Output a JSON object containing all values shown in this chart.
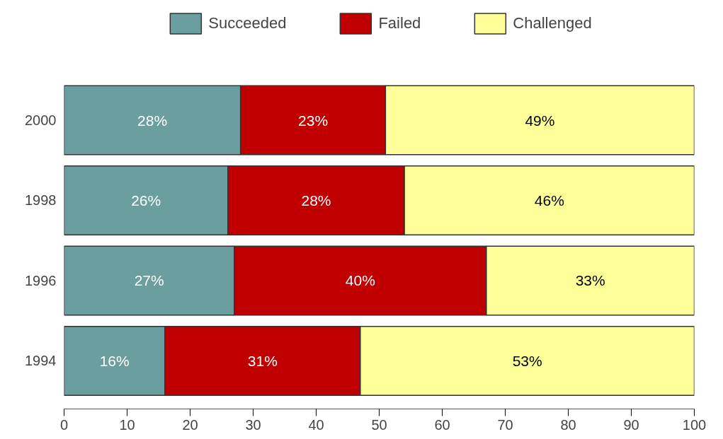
{
  "chart_data": {
    "type": "bar",
    "orientation": "horizontal",
    "stacked": true,
    "categories": [
      "2000",
      "1998",
      "1996",
      "1994"
    ],
    "series": [
      {
        "name": "Succeeded",
        "color": "#6b9e9e",
        "values": [
          28,
          26,
          27,
          16
        ],
        "value_labels": [
          "28%",
          "26%",
          "27%",
          "16%"
        ]
      },
      {
        "name": "Failed",
        "color": "#c00000",
        "values": [
          23,
          28,
          40,
          31
        ],
        "value_labels": [
          "23%",
          "28%",
          "40%",
          "31%"
        ]
      },
      {
        "name": "Challenged",
        "color": "#ffff99",
        "values": [
          49,
          46,
          33,
          53
        ],
        "value_labels": [
          "49%",
          "46%",
          "33%",
          "53%"
        ]
      }
    ],
    "xlim": [
      0,
      100
    ],
    "xticks": [
      0,
      10,
      20,
      30,
      40,
      50,
      60,
      70,
      80,
      90,
      100
    ],
    "legend": "top",
    "grid": false
  }
}
